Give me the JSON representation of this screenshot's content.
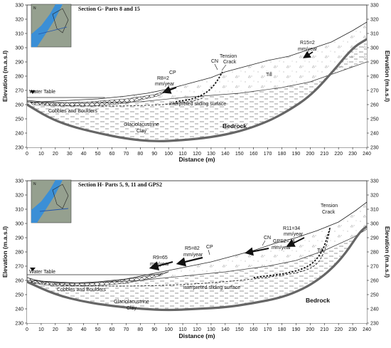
{
  "panels": [
    {
      "id": "g",
      "title": "Section G- Parts 8 and 15",
      "labels": {
        "water_table": "Water Table",
        "cp": "CP",
        "r8": [
          "R8=2",
          "mm/year"
        ],
        "cn": "CN",
        "tension": [
          "Tension",
          "Crack"
        ],
        "r15": [
          "R15=2",
          "mm/year"
        ],
        "till": "Till",
        "cobbles": "Cobbles and Boulders",
        "sliding": "interpreted sliding surface",
        "glacio": [
          "Glaciolacustrine",
          "Clay"
        ],
        "bedrock": "Bedrock"
      }
    },
    {
      "id": "h",
      "title": "Section H- Parts 5, 9, 11 and GPS2",
      "labels": {
        "water_table": "Water Table",
        "r9": [
          "R9=65",
          "mm/year"
        ],
        "r5": [
          "R5=82",
          "mm/year"
        ],
        "cp": "CP",
        "cn": "CN",
        "gps2": [
          "GPS2=74",
          "mm/year"
        ],
        "r11": [
          "R11=34",
          "mm/year"
        ],
        "tension": [
          "Tension",
          "Crack"
        ],
        "till": "Till",
        "cobbles": "Cobbles and Boulders",
        "sliding": "interpreted sliding surface",
        "glacio": [
          "Glaciolacustrine",
          "Clay"
        ],
        "bedrock": "Bedrock"
      }
    }
  ],
  "axes": {
    "xlabel": "Distance (m)",
    "ylabel": "Elevation (m.a.s.l)",
    "ylabel_right": "Elevation (m.a.s.l)",
    "x_ticks": [
      "0",
      "10",
      "20",
      "30",
      "40",
      "50",
      "60",
      "70",
      "80",
      "90",
      "100",
      "110",
      "120",
      "130",
      "140",
      "150",
      "160",
      "170",
      "180",
      "190",
      "200",
      "210",
      "220",
      "230",
      "240"
    ],
    "y_ticks": [
      "230",
      "240",
      "250",
      "260",
      "270",
      "280",
      "290",
      "300",
      "310",
      "320",
      "330"
    ],
    "xlim": [
      0,
      240
    ],
    "ylim": [
      230,
      330
    ]
  },
  "colors": {
    "bedrock_line": "#666666",
    "lake": "#3b8fd6",
    "map_land": "#8a9a86"
  }
}
